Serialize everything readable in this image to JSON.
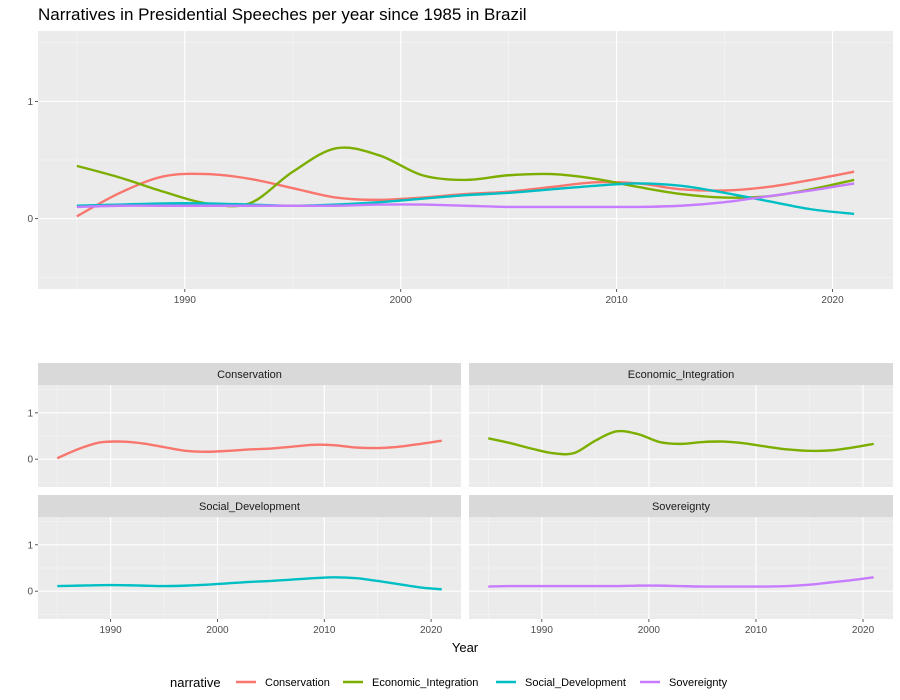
{
  "chart_data": {
    "type": "line",
    "title": "Narratives in Presidential Speeches per year since 1985 in Brazil",
    "xlabel": "Year",
    "ylabel": "",
    "xlim": [
      1983.2,
      2022.8
    ],
    "x_ticks": [
      1990,
      2000,
      2010,
      2020
    ],
    "ylim_main": [
      -0.6,
      1.6
    ],
    "ylim_facet": [
      -0.6,
      1.6
    ],
    "y_ticks": [
      0,
      1
    ],
    "grid": true,
    "legend": {
      "title": "narrative",
      "position": "bottom"
    },
    "series": [
      {
        "name": "Conservation",
        "color": "#F8766D",
        "x": [
          1985,
          1987,
          1989,
          1991,
          1993,
          1995,
          1997,
          1999,
          2001,
          2003,
          2005,
          2007,
          2009,
          2011,
          2013,
          2015,
          2017,
          2019,
          2021
        ],
        "values": [
          0.02,
          0.22,
          0.36,
          0.38,
          0.34,
          0.26,
          0.18,
          0.16,
          0.18,
          0.21,
          0.23,
          0.27,
          0.31,
          0.3,
          0.25,
          0.24,
          0.27,
          0.33,
          0.4
        ]
      },
      {
        "name": "Economic_Integration",
        "color": "#7CAE00",
        "x": [
          1985,
          1987,
          1989,
          1991,
          1993,
          1995,
          1997,
          1999,
          2001,
          2003,
          2005,
          2007,
          2009,
          2011,
          2013,
          2015,
          2017,
          2019,
          2021
        ],
        "values": [
          0.45,
          0.35,
          0.23,
          0.13,
          0.13,
          0.4,
          0.6,
          0.54,
          0.37,
          0.33,
          0.37,
          0.38,
          0.34,
          0.27,
          0.21,
          0.18,
          0.19,
          0.25,
          0.33
        ]
      },
      {
        "name": "Social_Development",
        "color": "#00BFC4",
        "x": [
          1985,
          1987,
          1989,
          1991,
          1993,
          1995,
          1997,
          1999,
          2001,
          2003,
          2005,
          2007,
          2009,
          2011,
          2013,
          2015,
          2017,
          2019,
          2021
        ],
        "values": [
          0.11,
          0.12,
          0.13,
          0.13,
          0.12,
          0.11,
          0.12,
          0.14,
          0.17,
          0.2,
          0.22,
          0.25,
          0.28,
          0.3,
          0.28,
          0.22,
          0.15,
          0.08,
          0.04
        ]
      },
      {
        "name": "Sovereignty",
        "color": "#C77CFF",
        "x": [
          1985,
          1987,
          1989,
          1991,
          1993,
          1995,
          1997,
          1999,
          2001,
          2003,
          2005,
          2007,
          2009,
          2011,
          2013,
          2015,
          2017,
          2019,
          2021
        ],
        "values": [
          0.1,
          0.11,
          0.11,
          0.11,
          0.11,
          0.11,
          0.11,
          0.12,
          0.12,
          0.11,
          0.1,
          0.1,
          0.1,
          0.1,
          0.11,
          0.14,
          0.19,
          0.24,
          0.3
        ]
      }
    ]
  }
}
